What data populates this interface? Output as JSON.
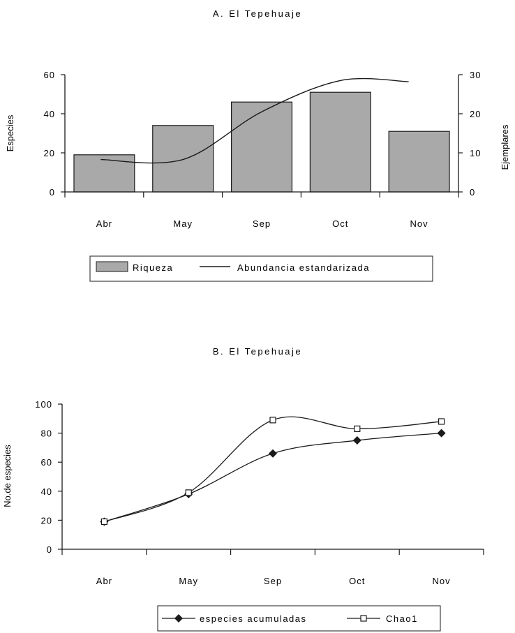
{
  "chart_data": [
    {
      "type": "bar",
      "title": "A. El Tepehuaje",
      "categories": [
        "Abr",
        "May",
        "Sep",
        "Oct",
        "Nov"
      ],
      "ylabel": "Especies",
      "y2label": "Ejemplares",
      "ylim": [
        0,
        60
      ],
      "yticks": [
        "0",
        "20",
        "40",
        "60"
      ],
      "y2lim": [
        0,
        30
      ],
      "y2ticks": [
        "0",
        "10",
        "20",
        "30"
      ],
      "series": [
        {
          "name": "Riqueza",
          "kind": "bar",
          "axis": "left",
          "values": [
            19,
            34,
            46,
            51,
            31
          ],
          "color": "#a9a9a9"
        },
        {
          "name": "Abundancia estandarizada",
          "kind": "line",
          "axis": "right",
          "values": [
            8.3,
            8.3,
            20.5,
            28.5,
            28.2
          ],
          "color": "#1a1a1a"
        }
      ],
      "legend": "bottom",
      "grid": false
    },
    {
      "type": "line",
      "title": "B. El Tepehuaje",
      "categories": [
        "Abr",
        "May",
        "Sep",
        "Oct",
        "Nov"
      ],
      "ylabel": "No.de especies",
      "ylim": [
        0,
        100
      ],
      "yticks": [
        "0",
        "20",
        "40",
        "60",
        "80",
        "100"
      ],
      "series": [
        {
          "name": "especies acumuladas",
          "marker": "diamond",
          "values": [
            19,
            38,
            66,
            75,
            80
          ]
        },
        {
          "name": "Chao1",
          "marker": "square",
          "values": [
            19,
            39,
            89,
            83,
            88
          ]
        }
      ],
      "legend": "bottom",
      "grid": false
    }
  ]
}
